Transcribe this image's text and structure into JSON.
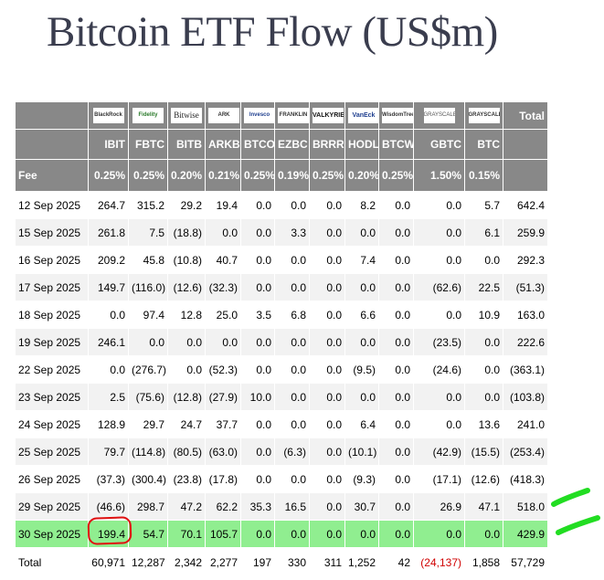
{
  "title": "Bitcoin ETF Flow (US$m)",
  "header": {
    "logos": [
      {
        "id": "blackrock",
        "text": "BlackRock"
      },
      {
        "id": "fidelity",
        "text": "Fidelity"
      },
      {
        "id": "bitwise",
        "text": "Bitwise"
      },
      {
        "id": "ark",
        "text": "ARK"
      },
      {
        "id": "invesco",
        "text": "Invesco"
      },
      {
        "id": "franklin",
        "text": "FRANKLIN"
      },
      {
        "id": "valkyrie",
        "text": "VALKYRIE"
      },
      {
        "id": "vaneck",
        "text": "VanEck"
      },
      {
        "id": "wisdomtree",
        "text": "WisdomTree"
      },
      {
        "id": "grayscale",
        "text": "GRAYSCALE"
      },
      {
        "id": "grayscale2",
        "text": "GRAYSCALE"
      }
    ],
    "total_label": "Total",
    "tickers": [
      "IBIT",
      "FBTC",
      "BITB",
      "ARKB",
      "BTCO",
      "EZBC",
      "BRRR",
      "HODL",
      "BTCW",
      "GBTC",
      "BTC"
    ],
    "fee_label": "Fee",
    "fees": [
      "0.25%",
      "0.25%",
      "0.20%",
      "0.21%",
      "0.25%",
      "0.19%",
      "0.25%",
      "0.20%",
      "0.25%",
      "1.50%",
      "0.15%"
    ]
  },
  "rows": [
    {
      "date": "12 Sep 2025",
      "values": [
        "264.7",
        "315.2",
        "29.2",
        "19.4",
        "0.0",
        "0.0",
        "0.0",
        "8.2",
        "0.0",
        "0.0",
        "5.7"
      ],
      "total": "642.4"
    },
    {
      "date": "15 Sep 2025",
      "values": [
        "261.8",
        "7.5",
        "(18.8)",
        "0.0",
        "0.0",
        "3.3",
        "0.0",
        "0.0",
        "0.0",
        "0.0",
        "6.1"
      ],
      "total": "259.9"
    },
    {
      "date": "16 Sep 2025",
      "values": [
        "209.2",
        "45.8",
        "(10.8)",
        "40.7",
        "0.0",
        "0.0",
        "0.0",
        "7.4",
        "0.0",
        "0.0",
        "0.0"
      ],
      "total": "292.3"
    },
    {
      "date": "17 Sep 2025",
      "values": [
        "149.7",
        "(116.0)",
        "(12.6)",
        "(32.3)",
        "0.0",
        "0.0",
        "0.0",
        "0.0",
        "0.0",
        "(62.6)",
        "22.5"
      ],
      "total": "(51.3)"
    },
    {
      "date": "18 Sep 2025",
      "values": [
        "0.0",
        "97.4",
        "12.8",
        "25.0",
        "3.5",
        "6.8",
        "0.0",
        "6.6",
        "0.0",
        "0.0",
        "10.9"
      ],
      "total": "163.0"
    },
    {
      "date": "19 Sep 2025",
      "values": [
        "246.1",
        "0.0",
        "0.0",
        "0.0",
        "0.0",
        "0.0",
        "0.0",
        "0.0",
        "0.0",
        "(23.5)",
        "0.0"
      ],
      "total": "222.6"
    },
    {
      "date": "22 Sep 2025",
      "values": [
        "0.0",
        "(276.7)",
        "0.0",
        "(52.3)",
        "0.0",
        "0.0",
        "0.0",
        "(9.5)",
        "0.0",
        "(24.6)",
        "0.0"
      ],
      "total": "(363.1)"
    },
    {
      "date": "23 Sep 2025",
      "values": [
        "2.5",
        "(75.6)",
        "(12.8)",
        "(27.9)",
        "10.0",
        "0.0",
        "0.0",
        "0.0",
        "0.0",
        "0.0",
        "0.0"
      ],
      "total": "(103.8)"
    },
    {
      "date": "24 Sep 2025",
      "values": [
        "128.9",
        "29.7",
        "24.7",
        "37.7",
        "0.0",
        "0.0",
        "0.0",
        "6.4",
        "0.0",
        "0.0",
        "13.6"
      ],
      "total": "241.0"
    },
    {
      "date": "25 Sep 2025",
      "values": [
        "79.7",
        "(114.8)",
        "(80.5)",
        "(63.0)",
        "0.0",
        "(6.3)",
        "0.0",
        "(10.1)",
        "0.0",
        "(42.9)",
        "(15.5)"
      ],
      "total": "(253.4)"
    },
    {
      "date": "26 Sep 2025",
      "values": [
        "(37.3)",
        "(300.4)",
        "(23.8)",
        "(17.8)",
        "0.0",
        "0.0",
        "0.0",
        "(9.3)",
        "0.0",
        "(17.1)",
        "(12.6)"
      ],
      "total": "(418.3)"
    },
    {
      "date": "29 Sep 2025",
      "values": [
        "(46.6)",
        "298.7",
        "47.2",
        "62.2",
        "35.3",
        "16.5",
        "0.0",
        "30.7",
        "0.0",
        "26.9",
        "47.1"
      ],
      "total": "518.0"
    },
    {
      "date": "30 Sep 2025",
      "values": [
        "199.4",
        "54.7",
        "70.1",
        "105.7",
        "0.0",
        "0.0",
        "0.0",
        "0.0",
        "0.0",
        "0.0",
        "0.0"
      ],
      "total": "429.9",
      "highlight": true
    }
  ],
  "totals": {
    "label": "Total",
    "values": [
      "60,971",
      "12,287",
      "2,342",
      "2,277",
      "197",
      "330",
      "311",
      "1,252",
      "42",
      "(24,137)",
      "1,858"
    ],
    "total": "57,729"
  },
  "colors": {
    "header_bg": "#888888",
    "negative": "#d00000",
    "highlight_row": "#90ee90",
    "circle_annotation": "#e01010",
    "check_marks": "#22dd22"
  }
}
